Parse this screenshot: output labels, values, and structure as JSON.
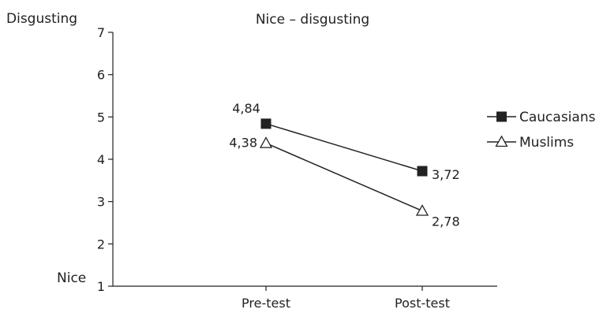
{
  "chart_data": {
    "type": "line",
    "title": "Nice – disgusting",
    "ylabel_top": "Disgusting",
    "ylabel_bottom": "Nice",
    "categories": [
      "Pre-test",
      "Post-test"
    ],
    "y_ticks": [
      "1",
      "2",
      "3",
      "4",
      "5",
      "6",
      "7"
    ],
    "ylim": [
      1,
      7
    ],
    "grid": false,
    "legend_position": "right",
    "series": [
      {
        "name": "Caucasians",
        "values": [
          4.84,
          3.72
        ],
        "labels": [
          "4,84",
          "3,72"
        ],
        "marker": "filled-square",
        "color": "#222222"
      },
      {
        "name": "Muslims",
        "values": [
          4.38,
          2.78
        ],
        "labels": [
          "4,38",
          "2,78"
        ],
        "marker": "open-triangle",
        "color": "#222222"
      }
    ]
  }
}
